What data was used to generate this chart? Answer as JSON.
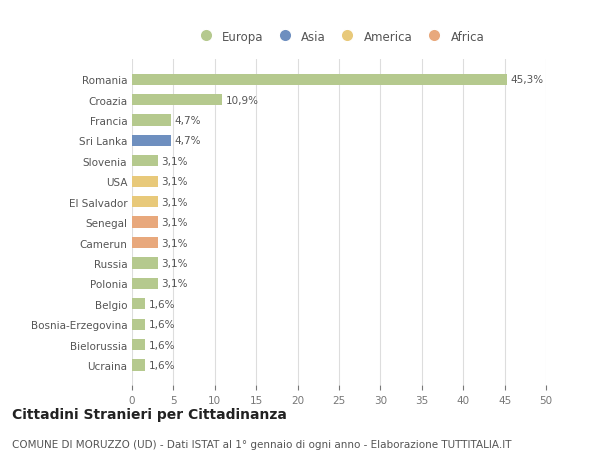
{
  "categories": [
    "Romania",
    "Croazia",
    "Francia",
    "Sri Lanka",
    "Slovenia",
    "USA",
    "El Salvador",
    "Senegal",
    "Camerun",
    "Russia",
    "Polonia",
    "Belgio",
    "Bosnia-Erzegovina",
    "Bielorussia",
    "Ucraina"
  ],
  "values": [
    45.3,
    10.9,
    4.7,
    4.7,
    3.1,
    3.1,
    3.1,
    3.1,
    3.1,
    3.1,
    3.1,
    1.6,
    1.6,
    1.6,
    1.6
  ],
  "labels": [
    "45,3%",
    "10,9%",
    "4,7%",
    "4,7%",
    "3,1%",
    "3,1%",
    "3,1%",
    "3,1%",
    "3,1%",
    "3,1%",
    "3,1%",
    "1,6%",
    "1,6%",
    "1,6%",
    "1,6%"
  ],
  "colors": [
    "#b5c98e",
    "#b5c98e",
    "#b5c98e",
    "#6e8fbf",
    "#b5c98e",
    "#e8c97a",
    "#e8c97a",
    "#e8a87c",
    "#e8a87c",
    "#b5c98e",
    "#b5c98e",
    "#b5c98e",
    "#b5c98e",
    "#b5c98e",
    "#b5c98e"
  ],
  "legend": [
    {
      "label": "Europa",
      "color": "#b5c98e"
    },
    {
      "label": "Asia",
      "color": "#6e8fbf"
    },
    {
      "label": "America",
      "color": "#e8c97a"
    },
    {
      "label": "Africa",
      "color": "#e8a87c"
    }
  ],
  "xlim": [
    0,
    50
  ],
  "xticks": [
    0,
    5,
    10,
    15,
    20,
    25,
    30,
    35,
    40,
    45,
    50
  ],
  "title": "Cittadini Stranieri per Cittadinanza",
  "subtitle": "COMUNE DI MORUZZO (UD) - Dati ISTAT al 1° gennaio di ogni anno - Elaborazione TUTTITALIA.IT",
  "background_color": "#ffffff",
  "grid_color": "#dddddd",
  "bar_height": 0.55,
  "label_fontsize": 7.5,
  "tick_fontsize": 7.5,
  "legend_fontsize": 8.5,
  "title_fontsize": 10,
  "subtitle_fontsize": 7.5
}
